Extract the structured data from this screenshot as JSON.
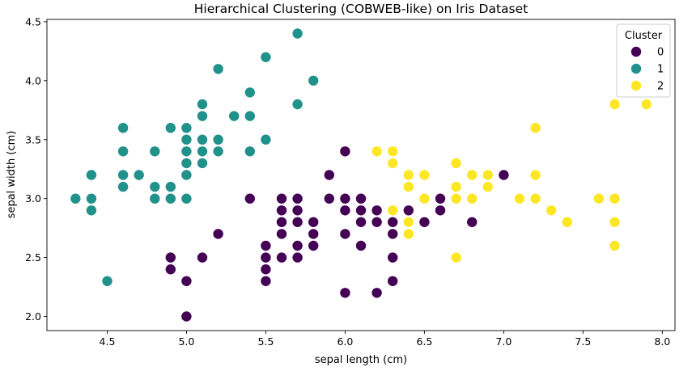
{
  "chart_data": {
    "type": "scatter",
    "title": "Hierarchical Clustering (COBWEB-like) on Iris Dataset",
    "xlabel": "sepal length (cm)",
    "ylabel": "sepal width (cm)",
    "xlim": [
      4.12,
      8.08
    ],
    "ylim": [
      1.88,
      4.52
    ],
    "xticks": [
      4.5,
      5.0,
      5.5,
      6.0,
      6.5,
      7.0,
      7.5,
      8.0
    ],
    "xtick_labels": [
      "4.5",
      "5.0",
      "5.5",
      "6.0",
      "6.5",
      "7.0",
      "7.5",
      "8.0"
    ],
    "yticks": [
      2.0,
      2.5,
      3.0,
      3.5,
      4.0,
      4.5
    ],
    "ytick_labels": [
      "2.0",
      "2.5",
      "3.0",
      "3.5",
      "4.0",
      "4.5"
    ],
    "grid": false,
    "legend": {
      "title": "Cluster",
      "placement": "top-right"
    },
    "series": [
      {
        "name": "0",
        "color": "#440154",
        "points": [
          [
            4.9,
            2.5
          ],
          [
            4.9,
            2.4
          ],
          [
            5.0,
            2.3
          ],
          [
            5.0,
            2.0
          ],
          [
            5.1,
            2.5
          ],
          [
            5.2,
            2.7
          ],
          [
            5.4,
            3.0
          ],
          [
            5.5,
            2.6
          ],
          [
            5.5,
            2.5
          ],
          [
            5.5,
            2.4
          ],
          [
            5.5,
            2.3
          ],
          [
            5.6,
            3.0
          ],
          [
            5.6,
            2.9
          ],
          [
            5.6,
            2.8
          ],
          [
            5.6,
            2.7
          ],
          [
            5.6,
            2.5
          ],
          [
            5.7,
            3.0
          ],
          [
            5.7,
            2.9
          ],
          [
            5.7,
            2.8
          ],
          [
            5.7,
            2.6
          ],
          [
            5.7,
            2.5
          ],
          [
            5.8,
            2.8
          ],
          [
            5.8,
            2.7
          ],
          [
            5.8,
            2.6
          ],
          [
            5.9,
            3.2
          ],
          [
            5.9,
            3.0
          ],
          [
            6.0,
            3.4
          ],
          [
            6.0,
            3.0
          ],
          [
            6.0,
            2.9
          ],
          [
            6.0,
            2.7
          ],
          [
            6.0,
            2.2
          ],
          [
            6.1,
            3.0
          ],
          [
            6.1,
            2.9
          ],
          [
            6.1,
            2.8
          ],
          [
            6.1,
            2.6
          ],
          [
            6.2,
            2.9
          ],
          [
            6.2,
            2.8
          ],
          [
            6.2,
            2.2
          ],
          [
            6.3,
            2.8
          ],
          [
            6.3,
            2.7
          ],
          [
            6.3,
            2.5
          ],
          [
            6.3,
            2.3
          ],
          [
            6.4,
            2.9
          ],
          [
            6.5,
            2.8
          ],
          [
            6.6,
            3.0
          ],
          [
            6.6,
            2.9
          ],
          [
            6.8,
            2.8
          ],
          [
            7.0,
            3.2
          ]
        ]
      },
      {
        "name": "1",
        "color": "#21918c",
        "points": [
          [
            4.3,
            3.0
          ],
          [
            4.4,
            3.2
          ],
          [
            4.4,
            3.0
          ],
          [
            4.4,
            2.9
          ],
          [
            4.5,
            2.3
          ],
          [
            4.6,
            3.6
          ],
          [
            4.6,
            3.4
          ],
          [
            4.6,
            3.2
          ],
          [
            4.6,
            3.1
          ],
          [
            4.7,
            3.2
          ],
          [
            4.8,
            3.4
          ],
          [
            4.8,
            3.1
          ],
          [
            4.8,
            3.0
          ],
          [
            4.9,
            3.6
          ],
          [
            4.9,
            3.1
          ],
          [
            4.9,
            3.0
          ],
          [
            5.0,
            3.6
          ],
          [
            5.0,
            3.5
          ],
          [
            5.0,
            3.4
          ],
          [
            5.0,
            3.3
          ],
          [
            5.0,
            3.2
          ],
          [
            5.0,
            3.0
          ],
          [
            5.1,
            3.8
          ],
          [
            5.1,
            3.7
          ],
          [
            5.1,
            3.5
          ],
          [
            5.1,
            3.4
          ],
          [
            5.1,
            3.3
          ],
          [
            5.2,
            4.1
          ],
          [
            5.2,
            3.5
          ],
          [
            5.2,
            3.4
          ],
          [
            5.3,
            3.7
          ],
          [
            5.4,
            3.9
          ],
          [
            5.4,
            3.7
          ],
          [
            5.4,
            3.4
          ],
          [
            5.5,
            4.2
          ],
          [
            5.5,
            3.5
          ],
          [
            5.7,
            4.4
          ],
          [
            5.7,
            3.8
          ],
          [
            5.8,
            4.0
          ]
        ]
      },
      {
        "name": "2",
        "color": "#fde725",
        "points": [
          [
            6.2,
            3.4
          ],
          [
            6.3,
            3.4
          ],
          [
            6.3,
            3.3
          ],
          [
            6.3,
            2.9
          ],
          [
            6.4,
            3.2
          ],
          [
            6.4,
            3.1
          ],
          [
            6.4,
            2.8
          ],
          [
            6.4,
            2.7
          ],
          [
            6.5,
            3.2
          ],
          [
            6.5,
            3.0
          ],
          [
            6.7,
            3.3
          ],
          [
            6.7,
            3.1
          ],
          [
            6.7,
            3.0
          ],
          [
            6.7,
            2.5
          ],
          [
            6.8,
            3.2
          ],
          [
            6.8,
            3.0
          ],
          [
            6.9,
            3.2
          ],
          [
            6.9,
            3.1
          ],
          [
            7.1,
            3.0
          ],
          [
            7.2,
            3.6
          ],
          [
            7.2,
            3.2
          ],
          [
            7.2,
            3.0
          ],
          [
            7.3,
            2.9
          ],
          [
            7.4,
            2.8
          ],
          [
            7.6,
            3.0
          ],
          [
            7.7,
            3.8
          ],
          [
            7.7,
            3.0
          ],
          [
            7.7,
            2.8
          ],
          [
            7.7,
            2.6
          ],
          [
            7.9,
            3.8
          ]
        ]
      }
    ]
  }
}
